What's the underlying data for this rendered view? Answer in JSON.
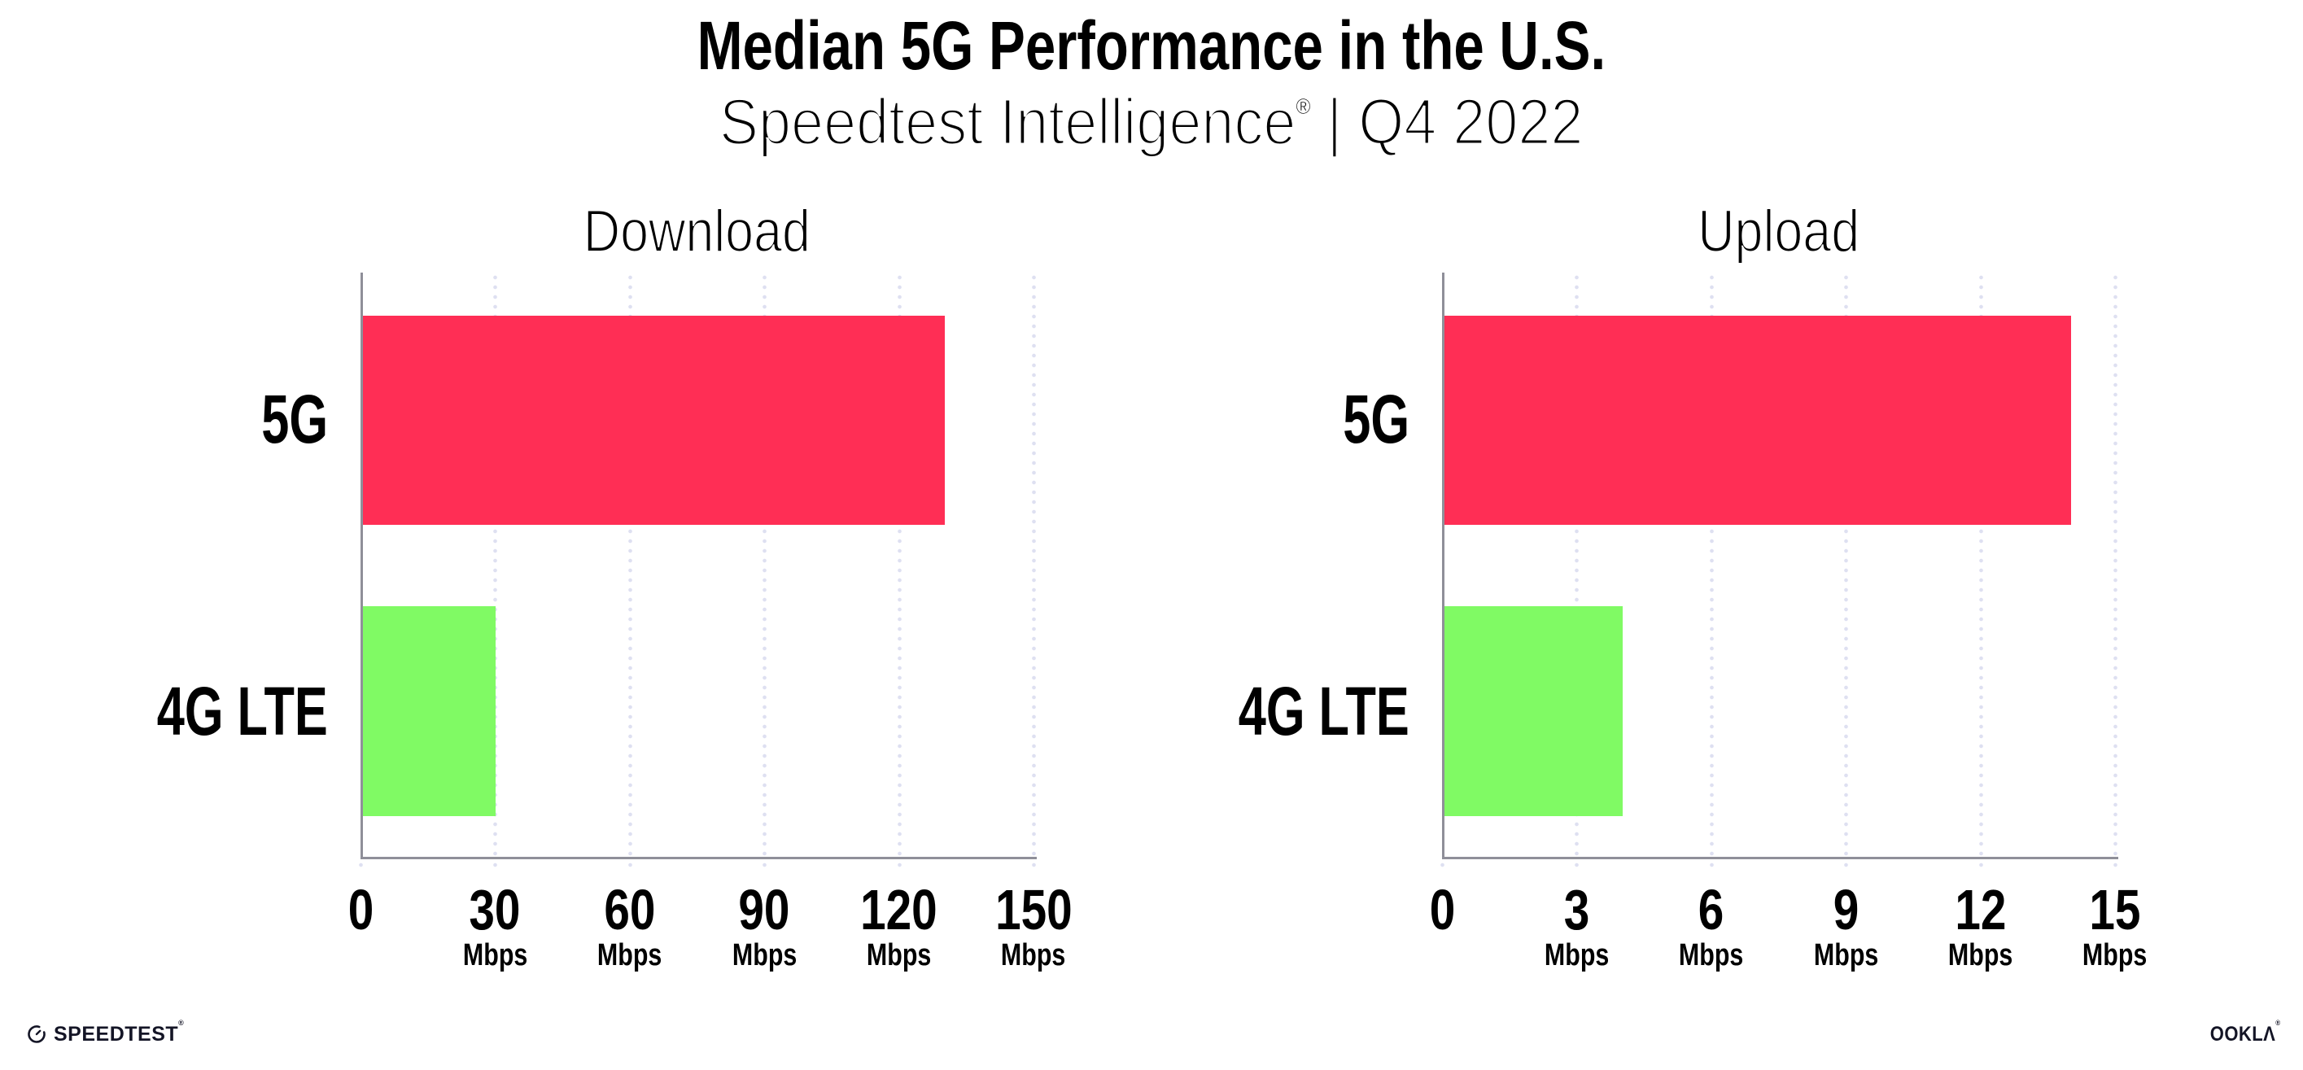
{
  "title": "Median 5G Performance in the U.S.",
  "subtitle": {
    "brand": "Speedtest Intelligence",
    "reg": "®",
    "rest": " | Q4 2022"
  },
  "footer": {
    "speedtest": "SPEEDTEST",
    "speedtest_reg": "®",
    "ookla": "OOKLΛ",
    "ookla_reg": "®"
  },
  "colors": {
    "bar_5g": "#FF2E55",
    "bar_lte": "#80FA64",
    "axis": "#8F8F99",
    "grid": "#DEE0F1",
    "text": "#000000"
  },
  "chart_data": [
    {
      "type": "bar",
      "orientation": "horizontal",
      "title": "Download",
      "categories": [
        "5G",
        "4G LTE"
      ],
      "values": [
        130,
        30
      ],
      "unit": "Mbps",
      "xlim": [
        0,
        150
      ],
      "xticks": [
        0,
        30,
        60,
        90,
        120,
        150
      ],
      "grid": "vertical-dotted",
      "legend": false
    },
    {
      "type": "bar",
      "orientation": "horizontal",
      "title": "Upload",
      "categories": [
        "5G",
        "4G LTE"
      ],
      "values": [
        14,
        4
      ],
      "unit": "Mbps",
      "xlim": [
        0,
        15
      ],
      "xticks": [
        0,
        3,
        6,
        9,
        12,
        15
      ],
      "grid": "vertical-dotted",
      "legend": false
    }
  ]
}
